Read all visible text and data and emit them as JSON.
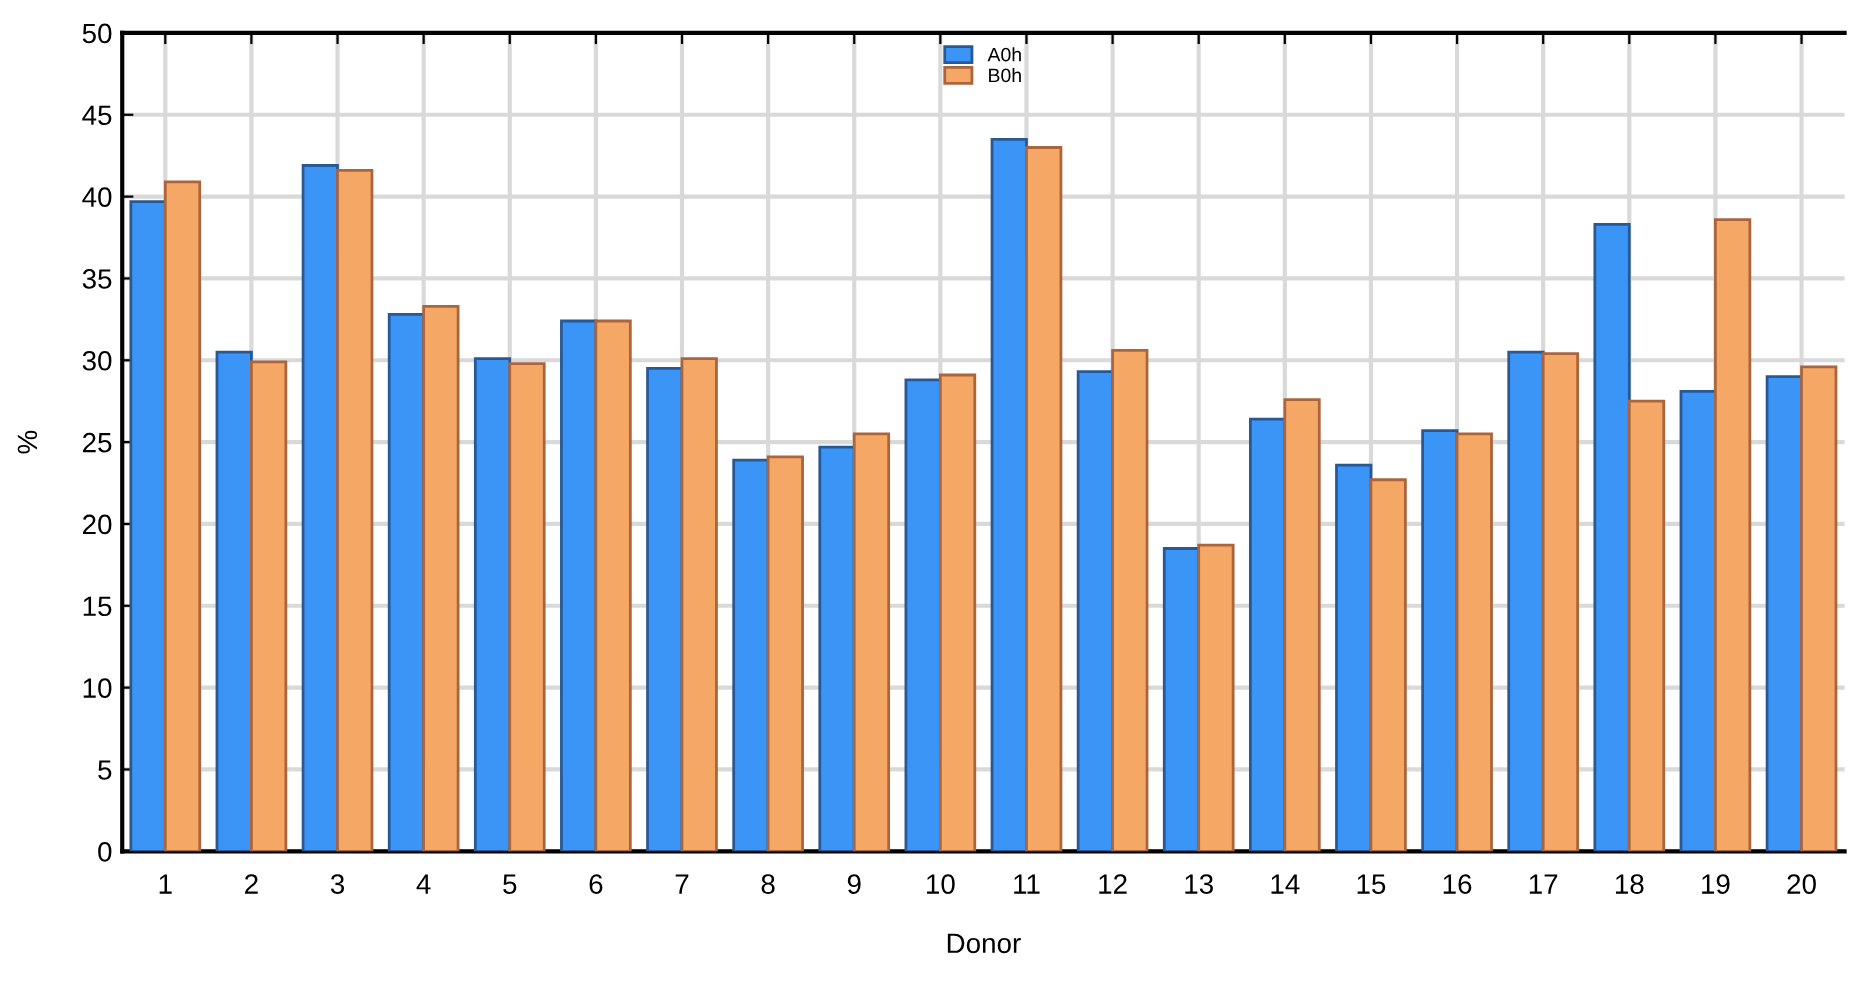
{
  "chart_data": {
    "type": "bar",
    "xlabel": "Donor",
    "ylabel": "%",
    "categories": [
      "1",
      "2",
      "3",
      "4",
      "5",
      "6",
      "7",
      "8",
      "9",
      "10",
      "11",
      "12",
      "13",
      "14",
      "15",
      "16",
      "17",
      "18",
      "19",
      "20"
    ],
    "series": [
      {
        "name": "A0h",
        "color": "#3a95f7",
        "values": [
          39.7,
          30.5,
          41.9,
          32.8,
          30.1,
          32.4,
          29.5,
          23.9,
          24.7,
          28.8,
          43.5,
          29.3,
          18.5,
          26.4,
          23.6,
          25.7,
          30.5,
          38.3,
          28.1,
          29.0
        ]
      },
      {
        "name": "B0h",
        "color": "#f5a866",
        "values": [
          40.9,
          29.9,
          41.6,
          33.3,
          29.8,
          32.4,
          30.1,
          24.1,
          25.5,
          29.1,
          43.0,
          30.6,
          18.7,
          27.6,
          22.7,
          25.5,
          30.4,
          27.5,
          38.6,
          29.6
        ]
      }
    ],
    "ylim": [
      0,
      50
    ],
    "yticks": [
      0,
      5,
      10,
      15,
      20,
      25,
      30,
      35,
      40,
      45,
      50
    ],
    "grid": true,
    "legend": "top"
  }
}
